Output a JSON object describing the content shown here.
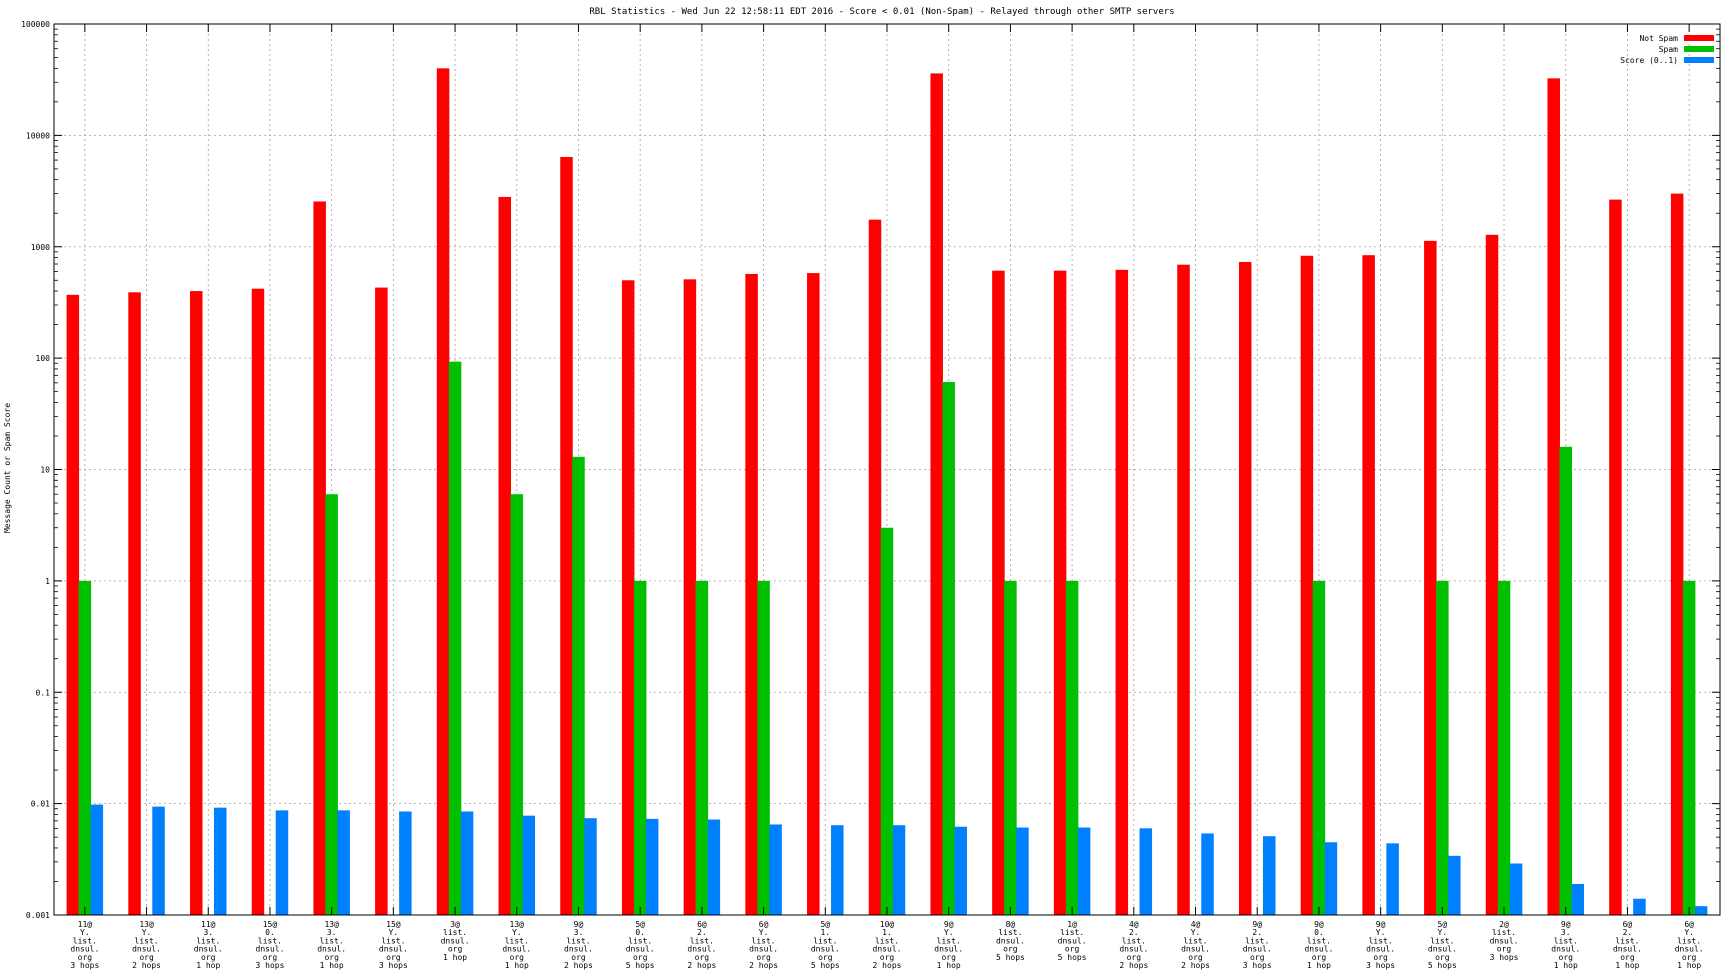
{
  "chart_data": {
    "type": "bar",
    "title": "RBL Statistics - Wed Jun 22 12:58:11 EDT 2016 - Score < 0.01 (Non-Spam) - Relayed through other SMTP servers",
    "ylabel": "Message Count or Spam Score",
    "xlabel": "",
    "y_scale": "log",
    "ylim": [
      0.001,
      100000
    ],
    "y_ticks": [
      "0.001",
      "0.01",
      "0.1",
      "1",
      "10",
      "100",
      "1000",
      "10000",
      "100000"
    ],
    "grid": true,
    "legend_position": "top-right",
    "categories": [
      [
        "11@",
        "Y.",
        "list.",
        "dnsul.",
        "org",
        "3 hops"
      ],
      [
        "13@",
        "Y.",
        "list.",
        "dnsul.",
        "org",
        "2 hops"
      ],
      [
        "11@",
        "3.",
        "list.",
        "dnsul.",
        "org",
        "1 hop"
      ],
      [
        "15@",
        "0.",
        "list.",
        "dnsul.",
        "org",
        "3 hops"
      ],
      [
        "13@",
        "3.",
        "list.",
        "dnsul.",
        "org",
        "1 hop"
      ],
      [
        "15@",
        "Y.",
        "list.",
        "dnsul.",
        "org",
        "3 hops"
      ],
      [
        "3@",
        "list.",
        "dnsul.",
        "org",
        "1 hop"
      ],
      [
        "13@",
        "Y.",
        "list.",
        "dnsul.",
        "org",
        "1 hop"
      ],
      [
        "9@",
        "3.",
        "list.",
        "dnsul.",
        "org",
        "2 hops"
      ],
      [
        "5@",
        "0.",
        "list.",
        "dnsul.",
        "org",
        "5 hops"
      ],
      [
        "6@",
        "2.",
        "list.",
        "dnsul.",
        "org",
        "2 hops"
      ],
      [
        "6@",
        "Y.",
        "list.",
        "dnsul.",
        "org",
        "2 hops"
      ],
      [
        "5@",
        "1.",
        "list.",
        "dnsul.",
        "org",
        "5 hops"
      ],
      [
        "10@",
        "1.",
        "list.",
        "dnsul.",
        "org",
        "2 hops"
      ],
      [
        "9@",
        "Y.",
        "list.",
        "dnsul.",
        "org",
        "1 hop"
      ],
      [
        "8@",
        "list.",
        "dnsul.",
        "org",
        "5 hops"
      ],
      [
        "1@",
        "list.",
        "dnsul.",
        "org",
        "5 hops"
      ],
      [
        "4@",
        "2.",
        "list.",
        "dnsul.",
        "org",
        "2 hops"
      ],
      [
        "4@",
        "Y.",
        "list.",
        "dnsul.",
        "org",
        "2 hops"
      ],
      [
        "9@",
        "2.",
        "list.",
        "dnsul.",
        "org",
        "3 hops"
      ],
      [
        "9@",
        "0.",
        "list.",
        "dnsul.",
        "org",
        "1 hop"
      ],
      [
        "9@",
        "Y.",
        "list.",
        "dnsul.",
        "org",
        "3 hops"
      ],
      [
        "5@",
        "Y.",
        "list.",
        "dnsul.",
        "org",
        "5 hops"
      ],
      [
        "2@",
        "list.",
        "dnsul.",
        "org",
        "3 hops"
      ],
      [
        "9@",
        "3.",
        "list.",
        "dnsul.",
        "org",
        "1 hop"
      ],
      [
        "6@",
        "2.",
        "list.",
        "dnsul.",
        "org",
        "1 hop"
      ],
      [
        "6@",
        "Y.",
        "list.",
        "dnsul.",
        "org",
        "1 hop"
      ]
    ],
    "series": [
      {
        "name": "Not Spam",
        "color": "#ff0000",
        "values": [
          370,
          390,
          400,
          420,
          2550,
          430,
          40000,
          2800,
          6400,
          500,
          510,
          570,
          580,
          1750,
          36000,
          610,
          610,
          620,
          690,
          730,
          830,
          840,
          1130,
          1280,
          32500,
          2650,
          3000
        ]
      },
      {
        "name": "Spam",
        "color": "#00c000",
        "values": [
          1,
          null,
          null,
          null,
          6,
          null,
          93,
          6,
          13,
          1,
          1,
          1,
          null,
          3,
          61,
          1,
          1,
          null,
          null,
          null,
          1,
          null,
          1,
          1,
          16,
          null,
          1
        ]
      },
      {
        "name": "Score (0..1)",
        "color": "#0080ff",
        "values": [
          0.0098,
          0.0094,
          0.0092,
          0.0087,
          0.0087,
          0.0085,
          0.0085,
          0.0078,
          0.0074,
          0.0073,
          0.0072,
          0.0065,
          0.0064,
          0.0064,
          0.0062,
          0.0061,
          0.0061,
          0.006,
          0.0054,
          0.0051,
          0.0045,
          0.0044,
          0.0034,
          0.0029,
          0.0019,
          0.0014,
          0.0012
        ]
      }
    ]
  }
}
